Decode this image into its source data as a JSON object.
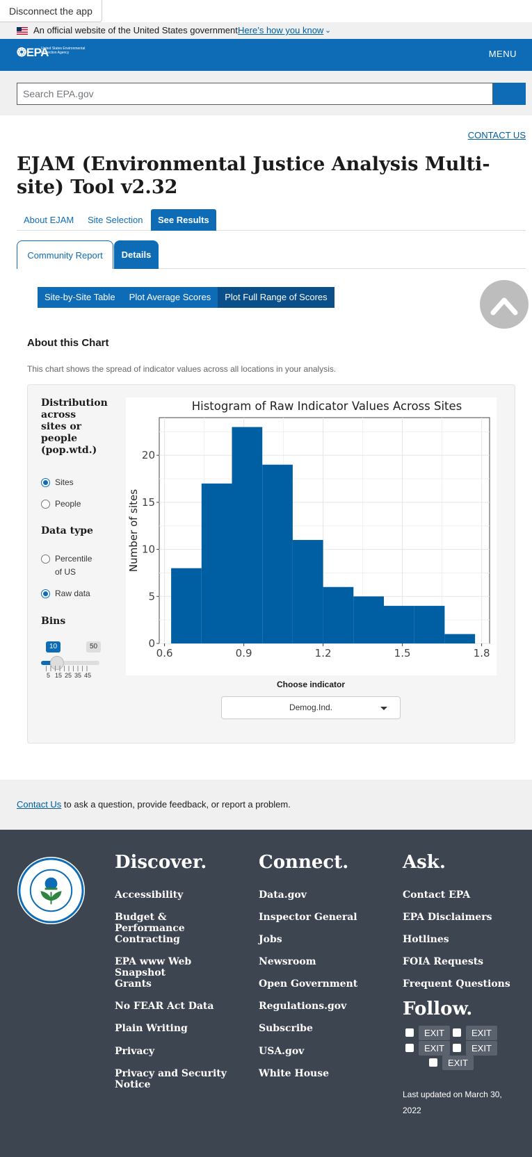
{
  "disconnect_label": "Disconnect the app",
  "gov_banner": {
    "official": "An official website of the United States government",
    "how_link": "Here’s how you know"
  },
  "header": {
    "logo": "EPA",
    "agency": "United States Environmental Protection Agency",
    "menu": "MENU"
  },
  "search": {
    "placeholder": "Search EPA.gov"
  },
  "contact_us_top": "CONTACT US",
  "page_title": "EJAM (Environmental Justice Analysis Multi-site) Tool v2.32",
  "main_tabs": [
    "About EJAM",
    "Site Selection",
    "See Results"
  ],
  "result_tabs": [
    "Community Report",
    "Details"
  ],
  "detail_tabs": [
    "Site-by-Site Table",
    "Plot Average Scores",
    "Plot Full Range of Scores"
  ],
  "about": {
    "heading": "About this Chart",
    "text": "This chart shows the spread of indicator values across all locations in your analysis."
  },
  "controls": {
    "distribution_heading": "Distribution across sites or people (pop.wtd.)",
    "distribution_options": [
      "Sites",
      "People"
    ],
    "distribution_selected": "Sites",
    "datatype_heading": "Data type",
    "datatype_options": [
      "Percentile of US",
      "Raw data"
    ],
    "datatype_selected": "Raw data",
    "bins_heading": "Bins",
    "bins_value": 10,
    "bins_max_label": "50",
    "bins_tick_labels": [
      "5",
      "15",
      "25",
      "35",
      "45"
    ]
  },
  "chart_data": {
    "type": "bar",
    "title": "Histogram of Raw Indicator Values Across Sites",
    "xlabel": "",
    "ylabel": "Number of sites",
    "bins": [
      {
        "x0": 0.625,
        "x1": 0.74,
        "count": 8
      },
      {
        "x0": 0.74,
        "x1": 0.855,
        "count": 17
      },
      {
        "x0": 0.855,
        "x1": 0.97,
        "count": 23
      },
      {
        "x0": 0.97,
        "x1": 1.085,
        "count": 19
      },
      {
        "x0": 1.085,
        "x1": 1.2,
        "count": 11
      },
      {
        "x0": 1.2,
        "x1": 1.315,
        "count": 6
      },
      {
        "x0": 1.315,
        "x1": 1.43,
        "count": 5
      },
      {
        "x0": 1.43,
        "x1": 1.545,
        "count": 4
      },
      {
        "x0": 1.545,
        "x1": 1.66,
        "count": 4
      },
      {
        "x0": 1.66,
        "x1": 1.775,
        "count": 1
      }
    ],
    "xticks": [
      "0.6",
      "0.9",
      "1.2",
      "1.5",
      "1.8"
    ],
    "yticks": [
      "0",
      "5",
      "10",
      "15",
      "20"
    ],
    "xlim": [
      0.58,
      1.83
    ],
    "ylim": [
      0,
      24
    ],
    "grid": true,
    "bar_color": "#005ea2"
  },
  "choose_indicator": {
    "label": "Choose indicator",
    "value": "Demog.Ind."
  },
  "contact_band": {
    "link": "Contact Us",
    "text": " to ask a question, provide feedback, or report a problem."
  },
  "footer": {
    "discover": {
      "heading": "Discover.",
      "links": [
        "Accessibility",
        "Budget & Performance",
        "Contracting",
        "EPA www Web Snapshot",
        "Grants",
        "No FEAR Act Data",
        "Plain Writing",
        "Privacy",
        "Privacy and Security Notice"
      ]
    },
    "connect": {
      "heading": "Connect.",
      "links": [
        "Data.gov",
        "Inspector General",
        "Jobs",
        "Newsroom",
        "Open Government",
        "Regulations.gov",
        "Subscribe",
        "USA.gov",
        "White House"
      ]
    },
    "ask": {
      "heading": "Ask.",
      "links": [
        "Contact EPA",
        "EPA Disclaimers",
        "Hotlines",
        "FOIA Requests",
        "Frequent Questions"
      ]
    },
    "follow": {
      "heading": "Follow.",
      "exit_label": "EXIT",
      "icons": [
        "facebook-icon",
        "twitter-icon",
        "youtube-icon",
        "flickr-icon",
        "instagram-icon"
      ]
    },
    "updated": "Last updated on March 30, 2022",
    "seal_text": "UNITED STATES ENVIRONMENTAL PROTECTION AGENCY"
  },
  "colors": {
    "primary": "#0e6cb6",
    "footer_bg": "#3d4551",
    "link": "#005ea2"
  }
}
